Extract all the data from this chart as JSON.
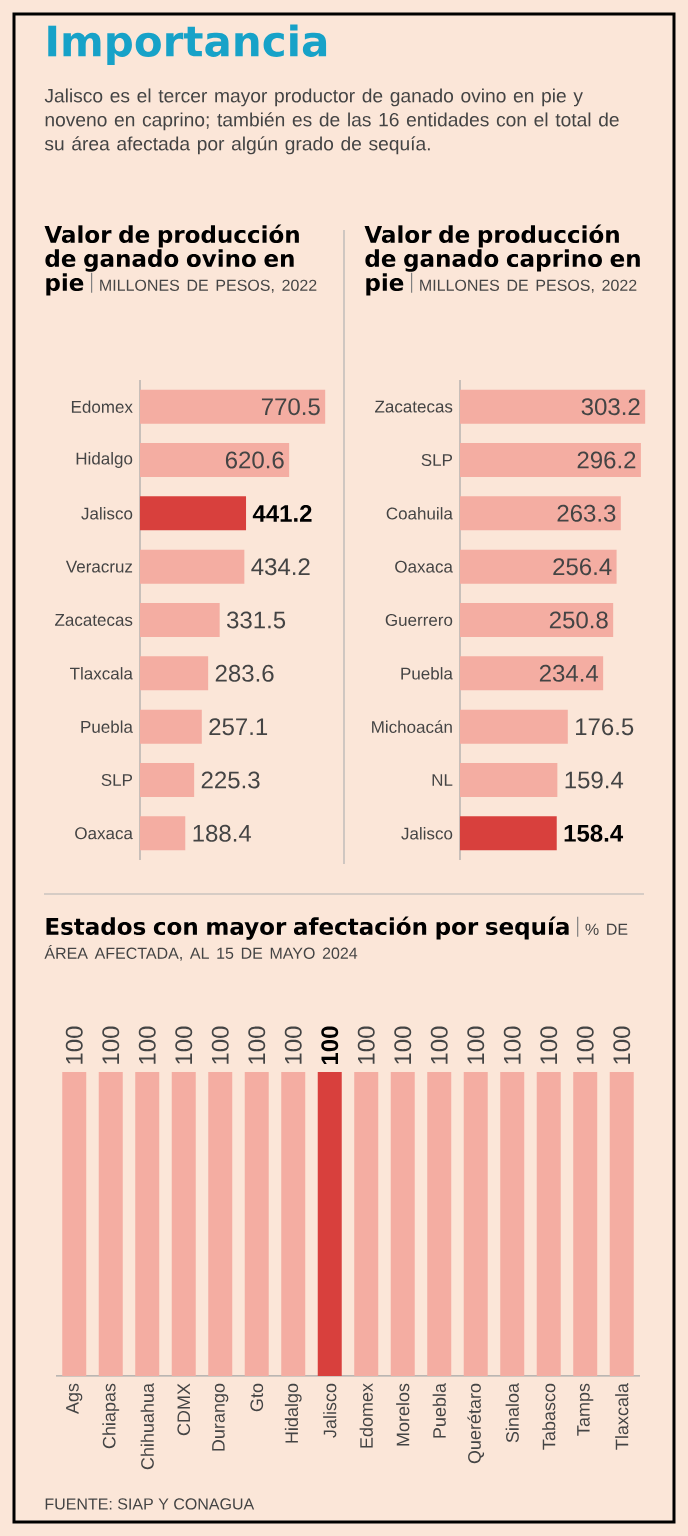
{
  "chart_data": [
    {
      "type": "other",
      "title": "Importancia",
      "subtitle": "Jalisco es el tercer mayor productor de ganado ovino en pie y noveno en caprino; también es de las 16 entidades con el total de su área afectada por algún grado de sequía."
    },
    {
      "type": "bar",
      "orientation": "horizontal",
      "title": "Valor de producción de ganado ovino en pie",
      "subtitle": "MILLONES DE PESOS, 2022",
      "data_labels": true,
      "categories": [
        "Edomex",
        "Hidalgo",
        "Jalisco",
        "Veracruz",
        "Zacatecas",
        "Tlaxcala",
        "Puebla",
        "SLP",
        "Oaxaca"
      ],
      "values": [
        770.5,
        620.6,
        441.2,
        434.2,
        331.5,
        283.6,
        257.1,
        225.3,
        188.4
      ],
      "colors": [
        "#f4ada2",
        "#f4ada2",
        "#d8403d",
        "#f4ada2",
        "#f4ada2",
        "#f4ada2",
        "#f4ada2",
        "#f4ada2",
        "#f4ada2"
      ]
    },
    {
      "type": "bar",
      "orientation": "horizontal",
      "title": "Valor de producción de ganado caprino en pie",
      "subtitle": "MILLONES DE PESOS, 2022",
      "data_labels": true,
      "categories": [
        "Zacatecas",
        "SLP",
        "Coahuila",
        "Oaxaca",
        "Guerrero",
        "Puebla",
        "Michoacán",
        "NL",
        "Jalisco"
      ],
      "values": [
        303.2,
        296.2,
        263.3,
        256.4,
        250.8,
        234.4,
        176.5,
        159.4,
        158.4
      ],
      "colors": [
        "#f4ada2",
        "#f4ada2",
        "#f4ada2",
        "#f4ada2",
        "#f4ada2",
        "#f4ada2",
        "#f4ada2",
        "#f4ada2",
        "#d8403d"
      ]
    },
    {
      "type": "bar",
      "title": "Estados con mayor afectación por sequía",
      "subtitle": "% DE ÁREA AFECTADA, AL 15 DE MAYO 2024",
      "data_labels": true,
      "categories": [
        "Ags",
        "Chiapas",
        "Chihuahua",
        "CDMX",
        "Durango",
        "Gto",
        "Hidalgo",
        "Jalisco",
        "Edomex",
        "Morelos",
        "Puebla",
        "Querétaro",
        "Sinaloa",
        "Tabasco",
        "Tamps",
        "Tlaxcala"
      ],
      "values": [
        100,
        100,
        100,
        100,
        100,
        100,
        100,
        100,
        100,
        100,
        100,
        100,
        100,
        100,
        100,
        100
      ],
      "colors": [
        "#f4ada2",
        "#f4ada2",
        "#f4ada2",
        "#f4ada2",
        "#f4ada2",
        "#f4ada2",
        "#f4ada2",
        "#d8403d",
        "#f4ada2",
        "#f4ada2",
        "#f4ada2",
        "#f4ada2",
        "#f4ada2",
        "#f4ada2",
        "#f4ada2",
        "#f4ada2"
      ],
      "annotations": [
        "FUENTE: SIAP  Y CONAGUA"
      ]
    }
  ]
}
